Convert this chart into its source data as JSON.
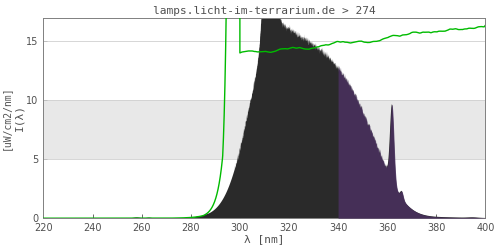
{
  "title": "lamps.licht-im-terrarium.de > 274",
  "xlabel": "λ [nm]",
  "ylabel_left": "I(λ)",
  "ylabel_right": "[uW/cm2/nm]",
  "xlim": [
    220,
    400
  ],
  "ylim": [
    0,
    17
  ],
  "yticks": [
    0,
    5,
    10,
    15
  ],
  "xticks": [
    220,
    240,
    260,
    280,
    300,
    320,
    340,
    360,
    380,
    400
  ],
  "bg_band_ymin": 5,
  "bg_band_ymax": 10,
  "bg_band_color": "#e8e8e8",
  "title_color": "#505050",
  "axis_color": "#808080",
  "tick_color": "#505050",
  "font_family": "monospace",
  "lamp_dark_color": "#2a2a2a",
  "lamp_purple_color": "#4a3060",
  "green_color": "#00bb00",
  "hline_color": "#d0d0d0"
}
